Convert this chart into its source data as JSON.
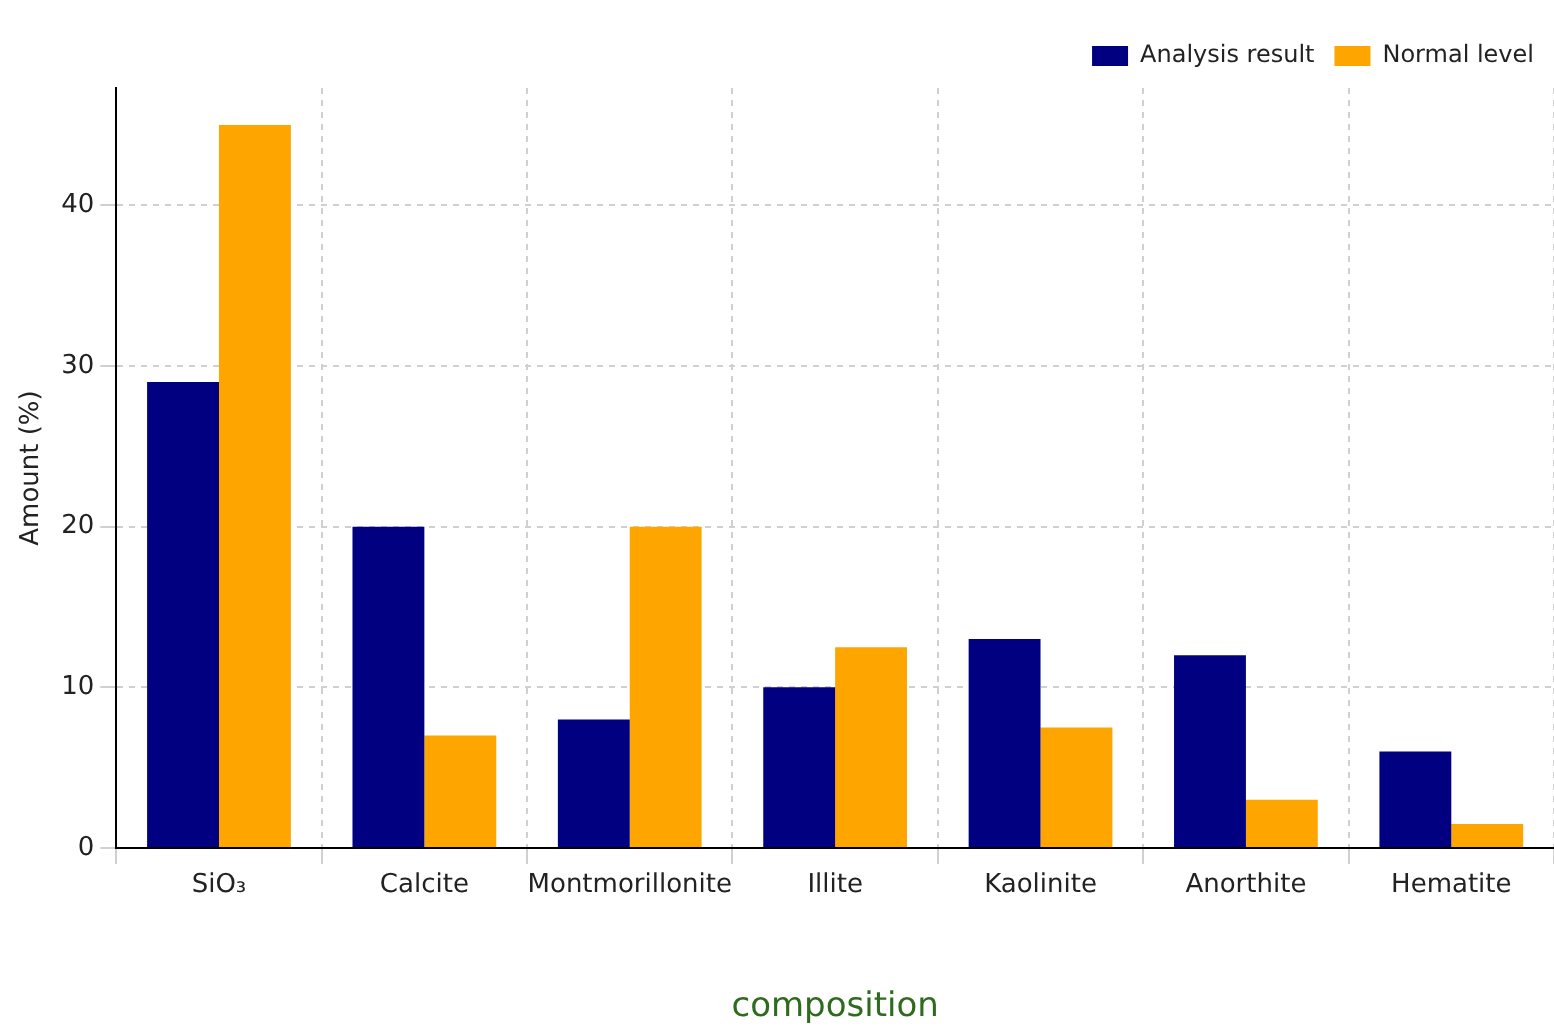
{
  "chart_data": {
    "type": "bar",
    "xlabel": "composition",
    "ylabel": "Amount (%)",
    "categories": [
      "SiO₃",
      "Calcite",
      "Montmorillonite",
      "Illite",
      "Kaolinite",
      "Anorthite",
      "Hematite"
    ],
    "series": [
      {
        "name": "Analysis result",
        "color": "#000080",
        "values": [
          29,
          20,
          8,
          10,
          13,
          12,
          6
        ]
      },
      {
        "name": "Normal level",
        "color": "#ffa500",
        "values": [
          45,
          7,
          20,
          12.5,
          7.5,
          3,
          1.5
        ]
      }
    ],
    "ylim": [
      0,
      47.3
    ],
    "yticks": [
      0,
      10,
      20,
      30,
      40
    ],
    "grid": true,
    "legend": "top right"
  }
}
